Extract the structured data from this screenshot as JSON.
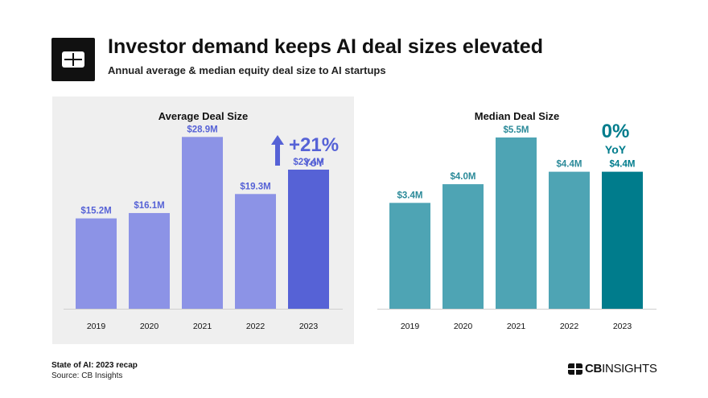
{
  "header": {
    "title": "Investor demand keeps AI deal sizes elevated",
    "subtitle": "Annual average & median equity deal size to AI startups",
    "logo_icon": "cb-insights-logo-icon"
  },
  "chart_data": [
    {
      "type": "bar",
      "title": "Average Deal Size",
      "categories": [
        "2019",
        "2020",
        "2021",
        "2022",
        "2023"
      ],
      "values": [
        15.2,
        16.1,
        28.9,
        19.3,
        23.4
      ],
      "value_labels": [
        "$15.2M",
        "$16.1M",
        "$28.9M",
        "$19.3M",
        "$23.4M"
      ],
      "unit": "$M",
      "ylim": [
        0,
        33
      ],
      "grid": false,
      "colors": [
        "#8c93e6",
        "#8c93e6",
        "#8c93e6",
        "#8c93e6",
        "#5662d6"
      ],
      "label_colors": [
        "#5662d6",
        "#5662d6",
        "#5662d6",
        "#5662d6",
        "#5662d6"
      ],
      "annotation": {
        "value": "+21%",
        "label": "YoY",
        "color": "#5662d6",
        "icon": "arrow-up-icon"
      },
      "background": "#efefef"
    },
    {
      "type": "bar",
      "title": "Median Deal Size",
      "categories": [
        "2019",
        "2020",
        "2021",
        "2022",
        "2023"
      ],
      "values": [
        3.4,
        4.0,
        5.5,
        4.4,
        4.4
      ],
      "value_labels": [
        "$3.4M",
        "$4.0M",
        "$5.5M",
        "$4.4M",
        "$4.4M"
      ],
      "unit": "$M",
      "ylim": [
        0,
        6.3
      ],
      "grid": false,
      "colors": [
        "#4ea4b4",
        "#4ea4b4",
        "#4ea4b4",
        "#4ea4b4",
        "#007c8c"
      ],
      "label_colors": [
        "#2b8a99",
        "#2b8a99",
        "#2b8a99",
        "#2b8a99",
        "#007c8c"
      ],
      "annotation": {
        "value": "0%",
        "label": "YoY",
        "color": "#007c8c"
      },
      "background": "#ffffff"
    }
  ],
  "footer": {
    "report": "State of AI: 2023 recap",
    "source": "Source: CB Insights",
    "brand_bold": "CB",
    "brand_rest": "INSIGHTS",
    "brand_icon": "cb-insights-brand-icon"
  }
}
